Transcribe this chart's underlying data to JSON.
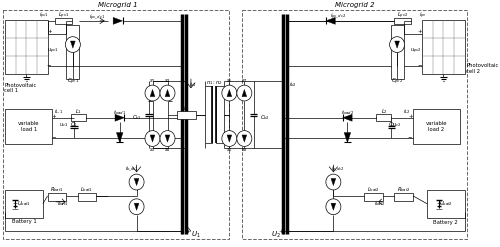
{
  "bg_color": "#ffffff",
  "fig_width": 5.0,
  "fig_height": 2.47,
  "dpi": 100,
  "microgrid1_label": "Microgrid 1",
  "microgrid2_label": "Microgrid 2",
  "pv_label1": "Photovoltaic\ncell 1",
  "pv_label2": "Photovoltaic\ncell 2",
  "vload_label1": "variable\nload 1",
  "vload_label2": "variable\nload 2",
  "bat_label1": "Battery 1",
  "bat_label2": "Battery 2"
}
